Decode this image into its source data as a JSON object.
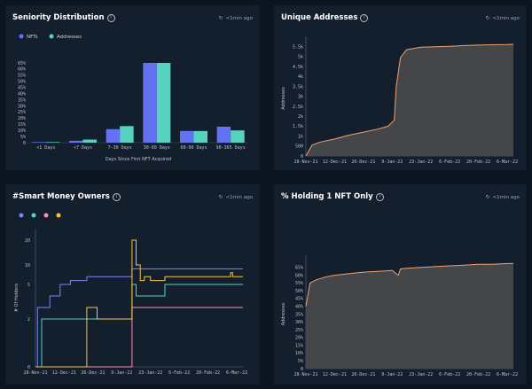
{
  "panels": {
    "seniority": {
      "title": "Seniority Distribution",
      "timestamp": "<1min ago",
      "legend": [
        "NFTs",
        "Addresses"
      ],
      "xlabel": "Days Since First NFT Acquired",
      "colors": {
        "nfts": "#6272f2",
        "addresses": "#55d3be"
      }
    },
    "unique": {
      "title": "Unique Addresses",
      "timestamp": "<1min ago",
      "ylabel": "Addresses"
    },
    "smart": {
      "title": "#Smart Money Owners",
      "timestamp": "<1min ago",
      "ylabel": "# Of Holders"
    },
    "holding": {
      "title": "% Holding 1 NFT Only",
      "timestamp": "<1min ago",
      "ylabel": "Addresses"
    }
  },
  "chart_data": [
    {
      "type": "bar",
      "categories": [
        "<1 Days",
        "<7 Days",
        "7-30 Days",
        "30-60 Days",
        "60-90 Days",
        "90-365 Days"
      ],
      "series": [
        {
          "name": "NFTs",
          "values": [
            0.5,
            1.5,
            11,
            65,
            9.5,
            13
          ]
        },
        {
          "name": "Addresses",
          "values": [
            0.5,
            2.5,
            13.5,
            65,
            9.5,
            10
          ]
        }
      ],
      "yticks": [
        "0",
        "5%",
        "10%",
        "15%",
        "20%",
        "25%",
        "30%",
        "35%",
        "40%",
        "45%",
        "50%",
        "55%",
        "60%",
        "65%"
      ],
      "ylim": [
        0,
        65
      ],
      "legend_position": "top-left"
    },
    {
      "type": "area",
      "x": [
        "28-Nov-21",
        "1-Dec-21",
        "5-Dec-21",
        "12-Dec-21",
        "19-Dec-21",
        "26-Dec-21",
        "2-Jan-22",
        "7-Jan-22",
        "10-Jan-22",
        "11-Jan-22",
        "13-Jan-22",
        "16-Jan-22",
        "23-Jan-22",
        "30-Jan-22",
        "6-Feb-22",
        "13-Feb-22",
        "20-Feb-22",
        "27-Feb-22",
        "6-Mar-22",
        "9-Mar-22"
      ],
      "values": [
        0,
        550,
        700,
        850,
        1050,
        1200,
        1350,
        1500,
        1800,
        3500,
        4950,
        5350,
        5480,
        5500,
        5520,
        5560,
        5580,
        5600,
        5610,
        5620
      ],
      "yticks": [
        "0",
        "500",
        "1k",
        "1.5k",
        "2k",
        "2.5k",
        "3k",
        "3.5k",
        "4k",
        "4.5k",
        "5k",
        "5.5k"
      ],
      "ylim": [
        0,
        5800
      ],
      "xticks": [
        "28-Nov-21",
        "12-Dec-21",
        "26-Dec-21",
        "9-Jan-22",
        "23-Jan-22",
        "6-Feb-22",
        "20-Feb-22",
        "6-Mar-22"
      ],
      "color": "#f4a06a"
    },
    {
      "type": "line",
      "x": [
        "28-Nov-21",
        "29-Nov-21",
        "1-Dec-21",
        "5-Dec-21",
        "10-Dec-21",
        "12-Dec-21",
        "15-Dec-21",
        "19-Dec-21",
        "23-Dec-21",
        "26-Dec-21",
        "28-Dec-21",
        "2-Jan-22",
        "6-Jan-22",
        "9-Jan-22",
        "12-Jan-22",
        "14-Jan-22",
        "16-Jan-22",
        "18-Jan-22",
        "20-Jan-22",
        "23-Jan-22",
        "30-Jan-22",
        "6-Feb-22",
        "13-Feb-22",
        "20-Feb-22",
        "27-Feb-22",
        "3-Mar-22",
        "4-Mar-22",
        "9-Mar-22"
      ],
      "yticks": [
        "0",
        "2",
        "5",
        "10",
        "20"
      ],
      "ylim": [
        0,
        25
      ],
      "xticks": [
        "28-Nov-21",
        "12-Dec-21",
        "26-Dec-21",
        "9-Jan-22",
        "23-Jan-22",
        "6-Feb-22",
        "20-Feb-22",
        "6-Mar-22"
      ],
      "series": [
        {
          "color": "#7a86f5",
          "values": [
            0,
            3,
            3,
            4,
            5,
            5,
            6,
            6,
            7,
            7,
            7,
            7,
            7,
            7,
            7,
            9,
            9,
            9,
            9,
            9,
            9,
            9,
            9,
            9,
            9,
            9,
            9,
            9
          ]
        },
        {
          "color": "#55d3be",
          "values": [
            0,
            0,
            2,
            2,
            2,
            2,
            2,
            2,
            2,
            2,
            2,
            2,
            2,
            2,
            2,
            5,
            4,
            4,
            4,
            4,
            5,
            5,
            5,
            5,
            5,
            5,
            5,
            5
          ]
        },
        {
          "color": "#ff8fb0",
          "values": [
            0,
            0,
            0,
            0,
            0,
            0,
            0,
            0,
            0,
            0,
            0,
            0,
            0,
            0,
            0,
            3,
            3,
            3,
            3,
            3,
            3,
            3,
            3,
            3,
            3,
            3,
            3,
            3
          ]
        },
        {
          "color": "#f5c542",
          "values": [
            0,
            0,
            0,
            0,
            0,
            0,
            0,
            0,
            3,
            3,
            2,
            2,
            2,
            2,
            2,
            20,
            10,
            6,
            7,
            6,
            7,
            7,
            7,
            7,
            7,
            8,
            7,
            7
          ]
        }
      ]
    },
    {
      "type": "area",
      "x": [
        "28-Nov-21",
        "30-Nov-21",
        "3-Dec-21",
        "8-Dec-21",
        "12-Dec-21",
        "19-Dec-21",
        "26-Dec-21",
        "2-Jan-22",
        "9-Jan-22",
        "12-Jan-22",
        "13-Jan-22",
        "16-Jan-22",
        "23-Jan-22",
        "30-Jan-22",
        "6-Feb-22",
        "13-Feb-22",
        "20-Feb-22",
        "27-Feb-22",
        "6-Mar-22",
        "9-Mar-22"
      ],
      "values": [
        40,
        55,
        57,
        59,
        60,
        61,
        62,
        62.5,
        63,
        60,
        64,
        64.5,
        65,
        65.5,
        66,
        66.5,
        67,
        67,
        67.5,
        67.5
      ],
      "yticks": [
        "0",
        "5%",
        "10%",
        "15%",
        "20%",
        "25%",
        "30%",
        "35%",
        "40%",
        "45%",
        "50%",
        "55%",
        "60%",
        "65%"
      ],
      "ylim": [
        0,
        70
      ],
      "xticks": [
        "28-Nov-21",
        "12-Dec-21",
        "26-Dec-21",
        "9-Jan-22",
        "23-Jan-22",
        "6-Feb-22",
        "20-Feb-22",
        "6-Mar-22"
      ],
      "color": "#f4a06a"
    }
  ]
}
